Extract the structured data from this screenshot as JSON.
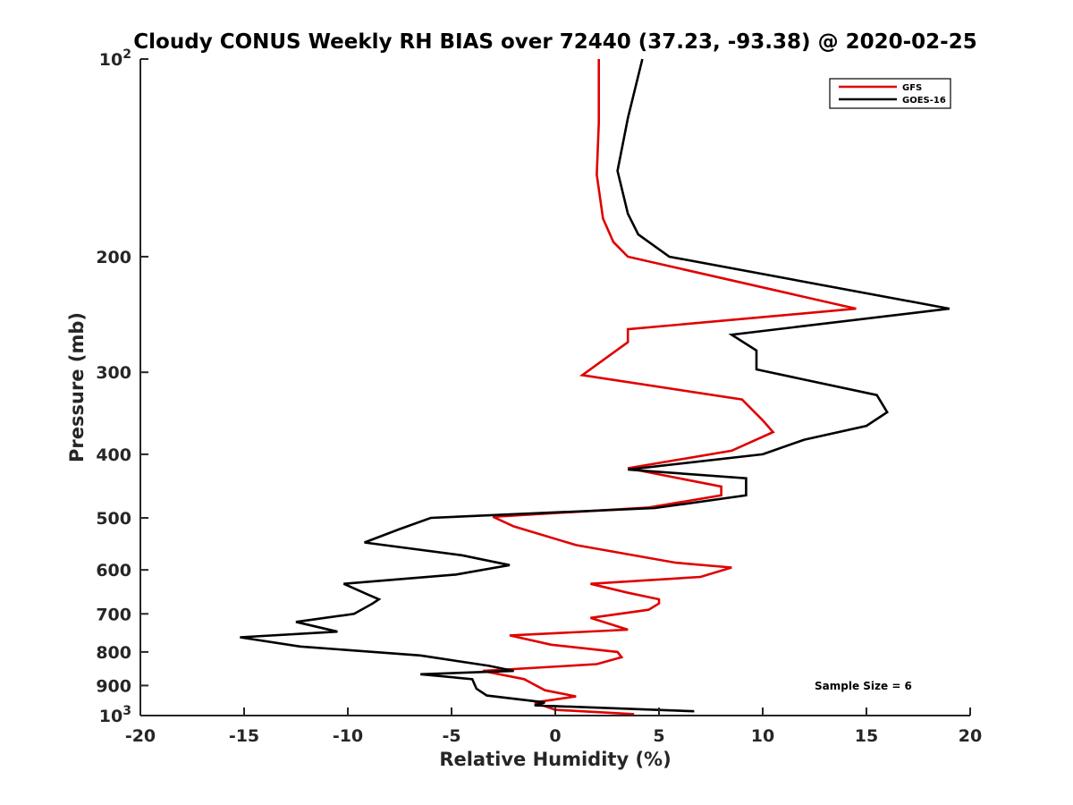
{
  "chart_data": {
    "type": "line",
    "title": "Cloudy CONUS Weekly RH BIAS over 72440 (37.23, -93.38) @ 2020-02-25",
    "xlabel": "Relative Humidity (%)",
    "ylabel": "Pressure (mb)",
    "xlim": [
      -20,
      20
    ],
    "ylim": [
      100,
      1000
    ],
    "y_scale": "log",
    "y_reversed": true,
    "x_ticks": [
      -20,
      -15,
      -10,
      -5,
      0,
      5,
      10,
      15,
      20
    ],
    "x_tick_labels": [
      "-20",
      "-15",
      "-10",
      "-5",
      "0",
      "5",
      "10",
      "15",
      "20"
    ],
    "y_ticks": [
      {
        "value": 100,
        "label": "10",
        "sup": "2"
      },
      {
        "value": 200,
        "label": "200",
        "sup": ""
      },
      {
        "value": 300,
        "label": "300",
        "sup": ""
      },
      {
        "value": 400,
        "label": "400",
        "sup": ""
      },
      {
        "value": 500,
        "label": "500",
        "sup": ""
      },
      {
        "value": 600,
        "label": "600",
        "sup": ""
      },
      {
        "value": 700,
        "label": "700",
        "sup": ""
      },
      {
        "value": 800,
        "label": "800",
        "sup": ""
      },
      {
        "value": 900,
        "label": "900",
        "sup": ""
      },
      {
        "value": 1000,
        "label": "10",
        "sup": "3"
      }
    ],
    "grid": false,
    "legend_position": "top-right",
    "annotation": "Sample Size = 6",
    "series": [
      {
        "name": "GFS",
        "color": "#e00000",
        "points": [
          [
            2.1,
            100
          ],
          [
            2.1,
            125
          ],
          [
            2.0,
            150
          ],
          [
            2.3,
            175
          ],
          [
            2.8,
            190
          ],
          [
            3.5,
            200
          ],
          [
            14.5,
            240
          ],
          [
            3.5,
            258
          ],
          [
            3.5,
            270
          ],
          [
            1.3,
            303
          ],
          [
            9.0,
            330
          ],
          [
            10.0,
            355
          ],
          [
            10.5,
            370
          ],
          [
            8.5,
            395
          ],
          [
            3.5,
            420
          ],
          [
            8.0,
            448
          ],
          [
            8.0,
            462
          ],
          [
            4.5,
            482
          ],
          [
            -3.0,
            498
          ],
          [
            -2.0,
            515
          ],
          [
            1.0,
            550
          ],
          [
            5.8,
            585
          ],
          [
            8.5,
            595
          ],
          [
            7.0,
            615
          ],
          [
            1.7,
            630
          ],
          [
            3.5,
            650
          ],
          [
            5.0,
            665
          ],
          [
            5.0,
            675
          ],
          [
            4.5,
            690
          ],
          [
            1.7,
            710
          ],
          [
            3.5,
            740
          ],
          [
            -2.2,
            755
          ],
          [
            -0.2,
            780
          ],
          [
            3.0,
            800
          ],
          [
            3.2,
            815
          ],
          [
            2.0,
            835
          ],
          [
            -3.5,
            855
          ],
          [
            -1.5,
            880
          ],
          [
            -0.5,
            915
          ],
          [
            1.0,
            935
          ],
          [
            -1.0,
            955
          ],
          [
            0.0,
            980
          ],
          [
            3.8,
            995
          ]
        ]
      },
      {
        "name": "GOES-16",
        "color": "#000000",
        "points": [
          [
            4.2,
            100
          ],
          [
            3.5,
            123
          ],
          [
            3.0,
            148
          ],
          [
            3.5,
            172
          ],
          [
            4.0,
            185
          ],
          [
            5.5,
            200
          ],
          [
            19.0,
            240
          ],
          [
            8.5,
            263
          ],
          [
            9.7,
            278
          ],
          [
            9.7,
            297
          ],
          [
            15.5,
            325
          ],
          [
            16.0,
            345
          ],
          [
            15.0,
            362
          ],
          [
            12.0,
            380
          ],
          [
            10.0,
            400
          ],
          [
            3.5,
            422
          ],
          [
            9.2,
            435
          ],
          [
            9.2,
            462
          ],
          [
            4.8,
            483
          ],
          [
            -6.0,
            500
          ],
          [
            -7.5,
            520
          ],
          [
            -9.2,
            545
          ],
          [
            -4.5,
            570
          ],
          [
            -2.2,
            590
          ],
          [
            -4.8,
            610
          ],
          [
            -10.2,
            630
          ],
          [
            -9.0,
            655
          ],
          [
            -8.5,
            665
          ],
          [
            -8.8,
            675
          ],
          [
            -9.7,
            700
          ],
          [
            -12.5,
            720
          ],
          [
            -10.5,
            745
          ],
          [
            -15.2,
            760
          ],
          [
            -12.3,
            785
          ],
          [
            -6.5,
            810
          ],
          [
            -3.2,
            840
          ],
          [
            -2.0,
            855
          ],
          [
            -6.5,
            865
          ],
          [
            -4.0,
            880
          ],
          [
            -3.8,
            910
          ],
          [
            -3.3,
            932
          ],
          [
            -0.5,
            955
          ],
          [
            -1.0,
            965
          ],
          [
            6.7,
            985
          ]
        ]
      }
    ]
  }
}
